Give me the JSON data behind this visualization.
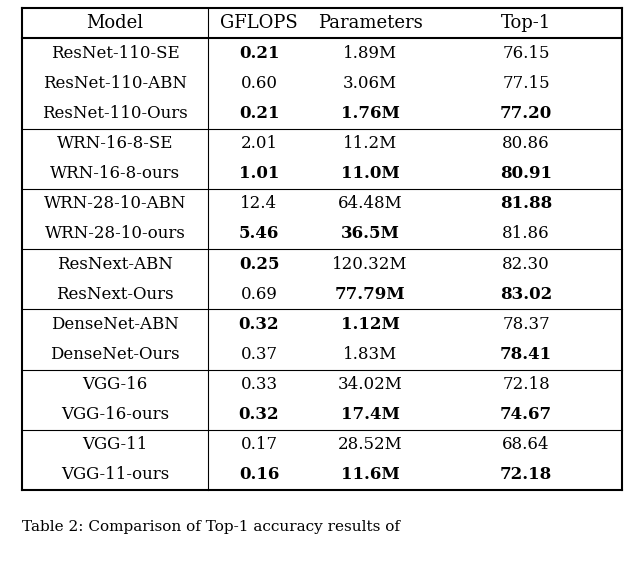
{
  "headers": [
    "Model",
    "GFLOPS",
    "Parameters",
    "Top-1"
  ],
  "rows": [
    [
      "ResNet-110-SE",
      "0.21",
      "1.89M",
      "76.15"
    ],
    [
      "ResNet-110-ABN",
      "0.60",
      "3.06M",
      "77.15"
    ],
    [
      "ResNet-110-Ours",
      "0.21",
      "1.76M",
      "77.20"
    ],
    [
      "WRN-16-8-SE",
      "2.01",
      "11.2M",
      "80.86"
    ],
    [
      "WRN-16-8-ours",
      "1.01",
      "11.0M",
      "80.91"
    ],
    [
      "WRN-28-10-ABN",
      "12.4",
      "64.48M",
      "81.88"
    ],
    [
      "WRN-28-10-ours",
      "5.46",
      "36.5M",
      "81.86"
    ],
    [
      "ResNext-ABN",
      "0.25",
      "120.32M",
      "82.30"
    ],
    [
      "ResNext-Ours",
      "0.69",
      "77.79M",
      "83.02"
    ],
    [
      "DenseNet-ABN",
      "0.32",
      "1.12M",
      "78.37"
    ],
    [
      "DenseNet-Ours",
      "0.37",
      "1.83M",
      "78.41"
    ],
    [
      "VGG-16",
      "0.33",
      "34.02M",
      "72.18"
    ],
    [
      "VGG-16-ours",
      "0.32",
      "17.4M",
      "74.67"
    ],
    [
      "VGG-11",
      "0.17",
      "28.52M",
      "68.64"
    ],
    [
      "VGG-11-ours",
      "0.16",
      "11.6M",
      "72.18"
    ]
  ],
  "bold": [
    [
      false,
      true,
      false,
      false
    ],
    [
      false,
      false,
      false,
      false
    ],
    [
      false,
      true,
      true,
      true
    ],
    [
      false,
      false,
      false,
      false
    ],
    [
      false,
      true,
      true,
      true
    ],
    [
      false,
      false,
      false,
      true
    ],
    [
      false,
      true,
      true,
      false
    ],
    [
      false,
      true,
      false,
      false
    ],
    [
      false,
      false,
      true,
      true
    ],
    [
      false,
      true,
      true,
      false
    ],
    [
      false,
      false,
      false,
      true
    ],
    [
      false,
      false,
      false,
      false
    ],
    [
      false,
      true,
      true,
      true
    ],
    [
      false,
      false,
      false,
      false
    ],
    [
      false,
      true,
      true,
      true
    ]
  ],
  "group_separators_after": [
    2,
    4,
    6,
    8,
    10,
    12
  ],
  "caption": "Table 2: Comparison of Top-1 accuracy results of",
  "background_color": "#ffffff",
  "header_fontsize": 13,
  "cell_fontsize": 12,
  "caption_fontsize": 11
}
